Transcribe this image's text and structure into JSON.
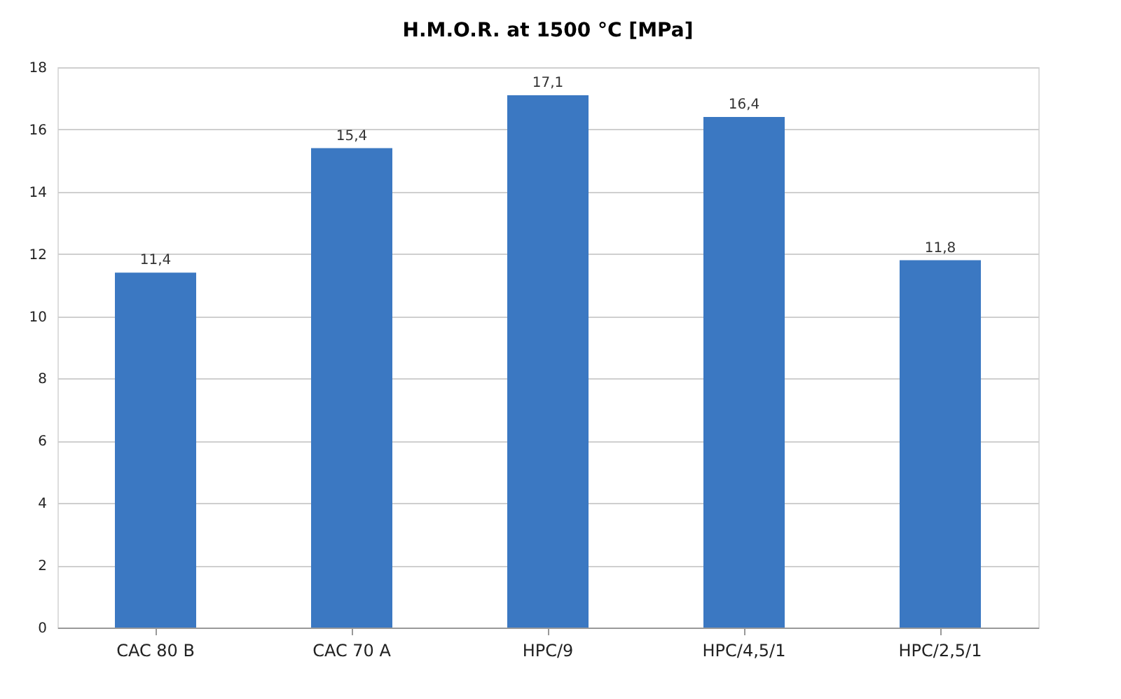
{
  "chart_data": {
    "type": "bar",
    "title": "H.M.O.R. at 1500 °C [MPa]",
    "categories": [
      "CAC 80 B",
      "CAC 70 A",
      "HPC/9",
      "HPC/4,5/1",
      "HPC/2,5/1"
    ],
    "values": [
      11.4,
      15.4,
      17.1,
      16.4,
      11.8
    ],
    "value_labels": [
      "11,4",
      "15,4",
      "17,1",
      "16,4",
      "11,8"
    ],
    "color": "#3b78c2",
    "ylim": [
      0,
      18
    ],
    "yticks": [
      0,
      2,
      4,
      6,
      8,
      10,
      12,
      14,
      16,
      18
    ],
    "grid": "y"
  }
}
